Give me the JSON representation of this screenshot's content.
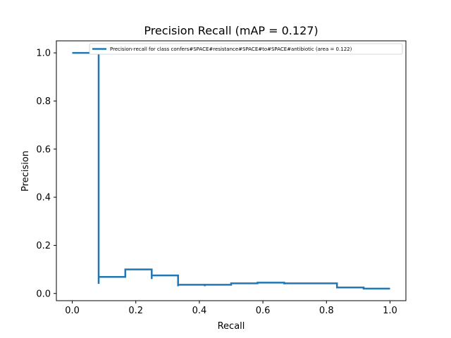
{
  "chart_data": {
    "type": "line",
    "title": "Precision Recall (mAP = 0.127)",
    "xlabel": "Recall",
    "ylabel": "Precision",
    "xlim": [
      -0.05,
      1.05
    ],
    "ylim": [
      -0.03,
      1.05
    ],
    "xticks": [
      0.0,
      0.2,
      0.4,
      0.6,
      0.8,
      1.0
    ],
    "xtick_labels": [
      "0.0",
      "0.2",
      "0.4",
      "0.6",
      "0.8",
      "1.0"
    ],
    "yticks": [
      0.0,
      0.2,
      0.4,
      0.6,
      0.8,
      1.0
    ],
    "ytick_labels": [
      "0.0",
      "0.2",
      "0.4",
      "0.6",
      "0.8",
      "1.0"
    ],
    "grid": false,
    "legend_position": "top-right",
    "series": [
      {
        "name": "Precision-recall for class confers#SPACE#resistance#SPACE#to#SPACE#antibiotic (area = 0.122)",
        "color": "#1f77b4",
        "x": [
          0.0,
          0.083,
          0.083,
          0.083,
          0.083,
          0.083,
          0.167,
          0.167,
          0.25,
          0.25,
          0.25,
          0.25,
          0.333,
          0.333,
          0.333,
          0.333,
          0.417,
          0.417,
          0.417,
          0.5,
          0.5,
          0.583,
          0.583,
          0.667,
          0.667,
          0.667,
          0.75,
          0.75,
          0.833,
          0.833,
          0.833,
          0.917,
          0.917,
          0.917,
          1.0
        ],
        "y": [
          1.0,
          1.0,
          0.04,
          0.04,
          0.069,
          0.069,
          0.069,
          0.1,
          0.1,
          0.06,
          0.06,
          0.075,
          0.075,
          0.03,
          0.03,
          0.036,
          0.036,
          0.03,
          0.036,
          0.036,
          0.042,
          0.042,
          0.045,
          0.045,
          0.038,
          0.042,
          0.042,
          0.042,
          0.042,
          0.025,
          0.025,
          0.025,
          0.02,
          0.02,
          0.02
        ]
      }
    ]
  }
}
